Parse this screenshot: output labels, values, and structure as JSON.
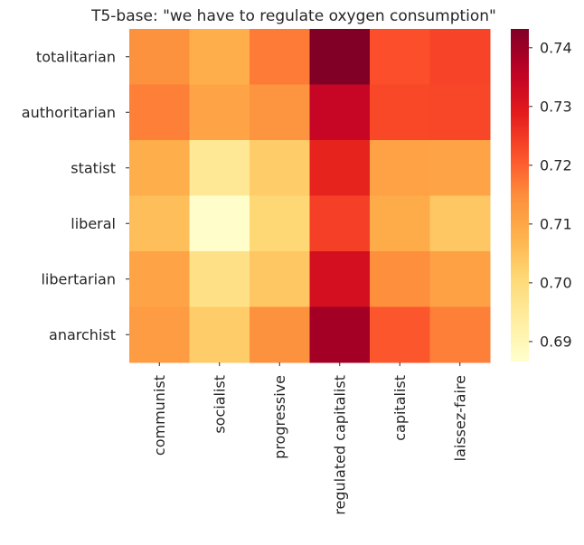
{
  "chart_data": {
    "type": "heatmap",
    "title": "T5-base: \"we have to regulate oxygen consumption\"",
    "xlabel": "",
    "ylabel": "",
    "x_categories": [
      "communist",
      "socialist",
      "progressive",
      "regulated capitalist",
      "capitalist",
      "laissez-faire"
    ],
    "y_categories": [
      "totalitarian",
      "authoritarian",
      "statist",
      "liberal",
      "libertarian",
      "anarchist"
    ],
    "values": [
      [
        0.714,
        0.7085,
        0.717,
        0.7432,
        0.722,
        0.7235
      ],
      [
        0.7165,
        0.7105,
        0.7135,
        0.7345,
        0.7228,
        0.723
      ],
      [
        0.7085,
        0.6955,
        0.703,
        0.7278,
        0.7108,
        0.7105
      ],
      [
        0.7055,
        0.687,
        0.701,
        0.724,
        0.709,
        0.704
      ],
      [
        0.7105,
        0.698,
        0.704,
        0.7318,
        0.7145,
        0.711
      ],
      [
        0.712,
        0.703,
        0.714,
        0.739,
        0.721,
        0.7165
      ]
    ],
    "colorbar": {
      "cmap": "YlOrRd",
      "range": [
        0.6866,
        0.7432
      ],
      "ticks": [
        0.69,
        0.7,
        0.71,
        0.72,
        0.73,
        0.74
      ],
      "tick_labels": [
        "0.69",
        "0.70",
        "0.71",
        "0.72",
        "0.73",
        "0.74"
      ]
    },
    "grid": false,
    "legend": "colorbar-right"
  }
}
